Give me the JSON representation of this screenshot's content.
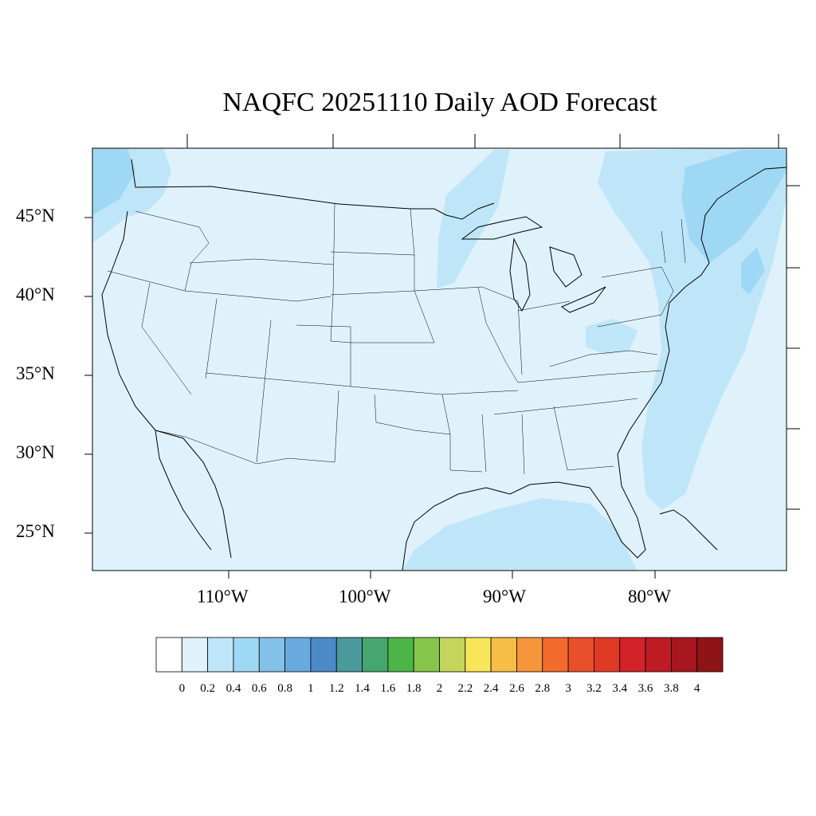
{
  "title": "NAQFC 20251110 Daily AOD Forecast",
  "map": {
    "background_color": "#dff2fb",
    "latitude_labels": [
      "45°N",
      "40°N",
      "35°N",
      "30°N",
      "25°N"
    ],
    "longitude_labels": [
      "110°W",
      "100°W",
      "90°W",
      "80°W"
    ]
  },
  "colorbar": {
    "labels": [
      "0",
      "0.2",
      "0.4",
      "0.6",
      "0.8",
      "1",
      "1.2",
      "1.4",
      "1.6",
      "1.8",
      "2",
      "2.2",
      "2.4",
      "2.6",
      "2.8",
      "3",
      "3.2",
      "3.4",
      "3.6",
      "3.8",
      "4"
    ],
    "colors": [
      "#ffffff",
      "#dff2fb",
      "#bfe6f8",
      "#9fd8f4",
      "#84c1e8",
      "#6aa9dd",
      "#4b89c8",
      "#4a9a9c",
      "#45a66f",
      "#4cb547",
      "#86c54b",
      "#c3d65a",
      "#f7e55a",
      "#f6bd47",
      "#f5953c",
      "#f26b2c",
      "#e84f2b",
      "#e03a27",
      "#d32228",
      "#bd1c24",
      "#a8171f",
      "#8e1418"
    ]
  }
}
